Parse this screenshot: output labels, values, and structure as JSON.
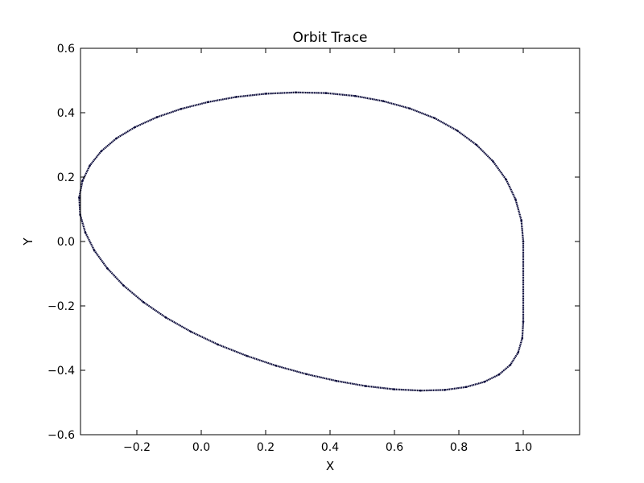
{
  "chart_data": {
    "type": "scatter",
    "title": "Orbit Trace",
    "xlabel": "X",
    "ylabel": "Y",
    "xlim": [
      -0.375,
      1.175
    ],
    "ylim": [
      -0.6,
      0.6
    ],
    "xticks": [
      -0.2,
      0.0,
      0.2,
      0.4,
      0.6,
      0.8,
      1.0
    ],
    "xtick_labels": [
      "−0.2",
      "0.0",
      "0.2",
      "0.4",
      "0.6",
      "0.8",
      "1.0"
    ],
    "yticks": [
      -0.6,
      -0.4,
      -0.2,
      0.0,
      0.2,
      0.4,
      0.6
    ],
    "ytick_labels": [
      "−0.6",
      "−0.4",
      "−0.2",
      "0.0",
      "0.2",
      "0.4",
      "0.6"
    ],
    "grid": false,
    "series": [
      {
        "color": "#0a0a3a",
        "marker": "dot",
        "x": [
          1.0,
          0.994,
          0.976,
          0.947,
          0.906,
          0.855,
          0.794,
          0.725,
          0.648,
          0.565,
          0.478,
          0.387,
          0.294,
          0.201,
          0.109,
          0.021,
          -0.062,
          -0.138,
          -0.206,
          -0.264,
          -0.311,
          -0.346,
          -0.369,
          -0.379,
          -0.376,
          -0.36,
          -0.332,
          -0.292,
          -0.241,
          -0.18,
          -0.11,
          -0.032,
          0.052,
          0.141,
          0.233,
          0.327,
          0.42,
          0.511,
          0.599,
          0.681,
          0.756,
          0.822,
          0.879,
          0.925,
          0.96,
          0.984,
          0.997,
          1.0
        ],
        "y": [
          0.0,
          0.066,
          0.131,
          0.192,
          0.249,
          0.3,
          0.345,
          0.383,
          0.413,
          0.436,
          0.452,
          0.461,
          0.463,
          0.459,
          0.449,
          0.433,
          0.412,
          0.386,
          0.355,
          0.32,
          0.28,
          0.236,
          0.188,
          0.137,
          0.083,
          0.028,
          -0.028,
          -0.083,
          -0.137,
          -0.188,
          -0.236,
          -0.28,
          -0.32,
          -0.355,
          -0.386,
          -0.412,
          -0.433,
          -0.449,
          -0.459,
          -0.463,
          -0.461,
          -0.452,
          -0.436,
          -0.413,
          -0.383,
          -0.345,
          -0.3,
          -0.249
        ]
      }
    ]
  }
}
